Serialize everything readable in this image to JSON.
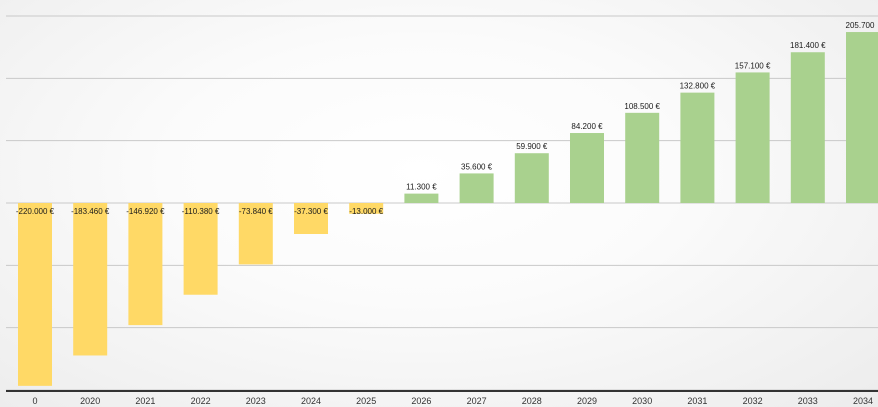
{
  "chart_data": {
    "type": "bar",
    "title": "",
    "xlabel": "",
    "ylabel": "",
    "categories": [
      "0",
      "2020",
      "2021",
      "2022",
      "2023",
      "2024",
      "2025",
      "2026",
      "2027",
      "2028",
      "2029",
      "2030",
      "2031",
      "2032",
      "2033",
      "2034"
    ],
    "values": [
      -220000,
      -183460,
      -146920,
      -110380,
      -73840,
      -37300,
      -13000,
      11300,
      35600,
      59900,
      84200,
      108500,
      132800,
      157100,
      181400,
      205700
    ],
    "data_labels": [
      "-220.000 €",
      "-183.460 €",
      "-146.920 €",
      "-110.380 €",
      "-73.840 €",
      "-37.300 €",
      "-13.000 €",
      "11.300 €",
      "35.600 €",
      "59.900 €",
      "84.200 €",
      "108.500 €",
      "132.800 €",
      "157.100 €",
      "181.400 €",
      "205.700"
    ],
    "ylim": [
      -225000,
      225000
    ],
    "grid": true,
    "grid_step": 75000,
    "legend": "none",
    "colors": {
      "negative": "#ffd966",
      "positive": "#a9d18e"
    }
  }
}
